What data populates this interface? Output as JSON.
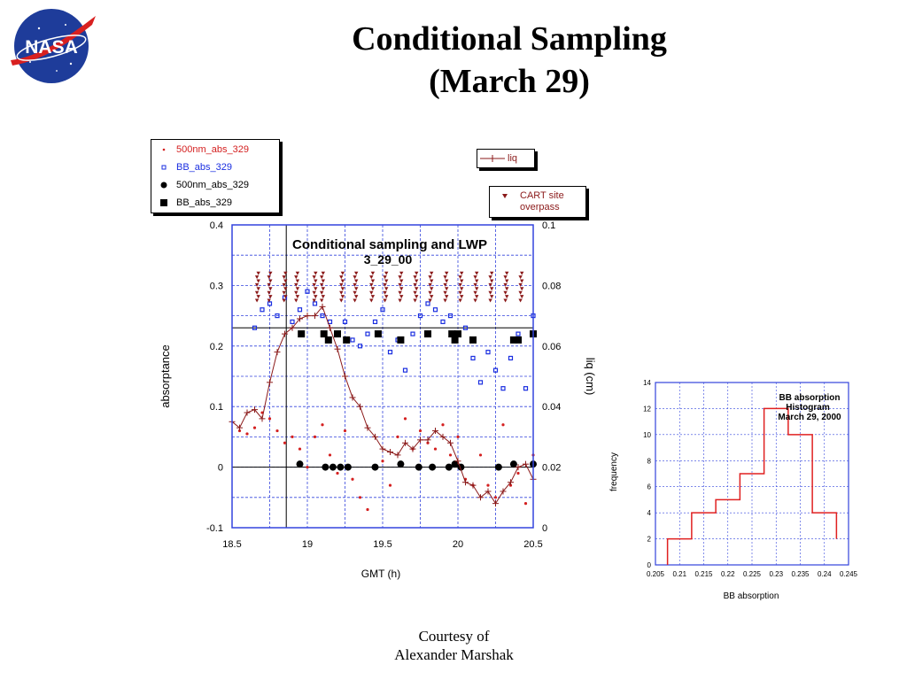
{
  "slide": {
    "title_line1": "Conditional Sampling",
    "title_line2": "(March 29)",
    "credit_line1": "Courtesy of",
    "credit_line2": "Alexander Marshak",
    "logo_text": "NASA"
  },
  "colors": {
    "red_dark": "#8b1a1a",
    "red": "#d42020",
    "blue": "#1a2ee0",
    "black": "#000000",
    "grid": "#3344dd",
    "hist_line": "#e02020"
  },
  "legend_absorptance": {
    "items": [
      {
        "label": "500nm_abs_329",
        "color": "#d42020",
        "symbol": "small-dot"
      },
      {
        "label": "BB_abs_329",
        "color": "#1a2ee0",
        "symbol": "small-square"
      },
      {
        "label": "500nm_abs_329",
        "color": "#000000",
        "symbol": "big-dot"
      },
      {
        "label": "BB_abs_329",
        "color": "#000000",
        "symbol": "big-square"
      }
    ]
  },
  "legend_liq": {
    "label": "liq",
    "color": "#8b1a1a",
    "symbol": "line-cross"
  },
  "legend_cart": {
    "label_line1": "CART site",
    "label_line2": "overpass",
    "color": "#8b1a1a",
    "symbol": "triangle"
  },
  "chart_data": [
    {
      "type": "scatter",
      "title": "Conditional sampling and LWP",
      "subtitle": "3_29_00",
      "xlabel": "GMT (h)",
      "ylabel": "absorptance",
      "y2label": "liq (cm)",
      "xlim": [
        18.5,
        20.5
      ],
      "ylim": [
        -0.1,
        0.4
      ],
      "y2lim": [
        0,
        0.1
      ],
      "xticks": [
        "18.5",
        "19",
        "19.5",
        "20",
        "20.5"
      ],
      "yticks": [
        "-0.1",
        "0",
        "0.1",
        "0.2",
        "0.3",
        "0.4"
      ],
      "y2ticks": [
        "0",
        "0.02",
        "0.04",
        "0.06",
        "0.08",
        "0.1"
      ],
      "grid": true,
      "reference_lines": {
        "y": [
          0,
          0.23
        ],
        "x": [
          18.86
        ]
      },
      "series": [
        {
          "name": "500nm_abs_329",
          "axis": "left",
          "marker": "small-dot",
          "color": "#d42020",
          "x": [
            18.55,
            18.6,
            18.65,
            18.7,
            18.75,
            18.8,
            18.85,
            18.9,
            18.95,
            19.0,
            19.05,
            19.1,
            19.15,
            19.2,
            19.25,
            19.3,
            19.35,
            19.4,
            19.45,
            19.5,
            19.55,
            19.6,
            19.65,
            19.7,
            19.75,
            19.8,
            19.85,
            19.9,
            19.95,
            20.0,
            20.05,
            20.1,
            20.15,
            20.2,
            20.25,
            20.3,
            20.35,
            20.4,
            20.45,
            20.5
          ],
          "y": [
            0.06,
            0.055,
            0.065,
            0.09,
            0.08,
            0.06,
            0.04,
            0.05,
            0.03,
            0.0,
            0.05,
            0.07,
            0.02,
            -0.01,
            0.06,
            -0.02,
            -0.05,
            -0.07,
            0.0,
            0.01,
            -0.03,
            0.05,
            0.08,
            0.03,
            0.06,
            0.04,
            0.03,
            0.07,
            0.02,
            0.05,
            -0.02,
            -0.03,
            0.02,
            -0.03,
            -0.05,
            0.07,
            -0.03,
            -0.01,
            -0.06,
            0.02
          ]
        },
        {
          "name": "BB_abs_329",
          "axis": "left",
          "marker": "small-square",
          "color": "#1a2ee0",
          "x": [
            18.65,
            18.7,
            18.75,
            18.8,
            18.85,
            18.9,
            18.95,
            19.0,
            19.05,
            19.1,
            19.15,
            19.2,
            19.25,
            19.3,
            19.35,
            19.4,
            19.45,
            19.5,
            19.55,
            19.6,
            19.65,
            19.7,
            19.75,
            19.8,
            19.85,
            19.9,
            19.95,
            20.0,
            20.05,
            20.1,
            20.15,
            20.2,
            20.25,
            20.3,
            20.35,
            20.4,
            20.45,
            20.5
          ],
          "y": [
            0.23,
            0.26,
            0.27,
            0.25,
            0.28,
            0.24,
            0.26,
            0.29,
            0.27,
            0.25,
            0.24,
            0.22,
            0.24,
            0.21,
            0.2,
            0.22,
            0.24,
            0.26,
            0.19,
            0.21,
            0.16,
            0.22,
            0.25,
            0.27,
            0.26,
            0.24,
            0.25,
            0.22,
            0.23,
            0.18,
            0.14,
            0.19,
            0.16,
            0.13,
            0.18,
            0.22,
            0.13,
            0.25
          ]
        },
        {
          "name": "500nm_abs_329",
          "axis": "left",
          "marker": "big-dot",
          "color": "#000000",
          "x": [
            18.95,
            19.12,
            19.17,
            19.22,
            19.27,
            19.45,
            19.62,
            19.74,
            19.83,
            19.94,
            19.98,
            20.02,
            20.27,
            20.37,
            20.5
          ],
          "y": [
            0.005,
            0.0,
            0.0,
            0.0,
            0.0,
            0.0,
            0.005,
            0.0,
            0.0,
            0.0,
            0.005,
            0.0,
            0.0,
            0.005,
            0.005
          ]
        },
        {
          "name": "BB_abs_329",
          "axis": "left",
          "marker": "big-square",
          "color": "#000000",
          "x": [
            18.96,
            19.11,
            19.14,
            19.2,
            19.26,
            19.47,
            19.62,
            19.8,
            19.96,
            19.98,
            20.0,
            20.1,
            20.37,
            20.4,
            20.5
          ],
          "y": [
            0.22,
            0.22,
            0.21,
            0.22,
            0.21,
            0.22,
            0.21,
            0.22,
            0.22,
            0.21,
            0.22,
            0.21,
            0.21,
            0.21,
            0.22
          ]
        },
        {
          "name": "liq",
          "axis": "right",
          "marker": "line-cross",
          "color": "#8b1a1a",
          "x": [
            18.5,
            18.55,
            18.6,
            18.65,
            18.7,
            18.75,
            18.8,
            18.85,
            18.9,
            18.95,
            19.0,
            19.05,
            19.1,
            19.15,
            19.2,
            19.25,
            19.3,
            19.35,
            19.4,
            19.45,
            19.5,
            19.55,
            19.6,
            19.65,
            19.7,
            19.75,
            19.8,
            19.85,
            19.9,
            19.95,
            20.0,
            20.05,
            20.1,
            20.15,
            20.2,
            20.25,
            20.3,
            20.35,
            20.4,
            20.45,
            20.5
          ],
          "y": [
            0.035,
            0.033,
            0.038,
            0.039,
            0.036,
            0.048,
            0.058,
            0.064,
            0.066,
            0.069,
            0.07,
            0.07,
            0.073,
            0.066,
            0.059,
            0.05,
            0.043,
            0.04,
            0.033,
            0.03,
            0.026,
            0.025,
            0.024,
            0.028,
            0.026,
            0.029,
            0.029,
            0.032,
            0.03,
            0.028,
            0.022,
            0.015,
            0.014,
            0.01,
            0.012,
            0.008,
            0.012,
            0.015,
            0.02,
            0.021,
            0.016
          ]
        },
        {
          "name": "CART site overpass",
          "axis": "right",
          "marker": "triangle",
          "color": "#8b1a1a",
          "overpass_times": [
            18.67,
            18.75,
            18.85,
            18.93,
            19.05,
            19.1,
            19.23,
            19.32,
            19.43,
            19.52,
            19.62,
            19.72,
            19.82,
            19.92,
            20.02,
            20.12,
            20.22,
            20.32,
            20.42
          ],
          "y_range": [
            0.075,
            0.084
          ]
        }
      ]
    },
    {
      "type": "bar",
      "title": "BB absorption",
      "subtitle_line1": "Histogram",
      "subtitle_line2": "March 29, 2000",
      "xlabel": "BB absorption",
      "ylabel": "frequency",
      "xlim": [
        0.205,
        0.245
      ],
      "ylim": [
        0,
        14
      ],
      "xticks": [
        "0.205",
        "0.21",
        "0.215",
        "0.22",
        "0.225",
        "0.23",
        "0.235",
        "0.24",
        "0.245"
      ],
      "yticks": [
        "0",
        "2",
        "4",
        "6",
        "8",
        "10",
        "12",
        "14"
      ],
      "grid": true,
      "bin_edges": [
        0.2075,
        0.2125,
        0.2175,
        0.2225,
        0.2275,
        0.2325,
        0.2375,
        0.2425
      ],
      "values": [
        2,
        4,
        5,
        7,
        12,
        10,
        4,
        2
      ],
      "color": "#e02020"
    }
  ]
}
